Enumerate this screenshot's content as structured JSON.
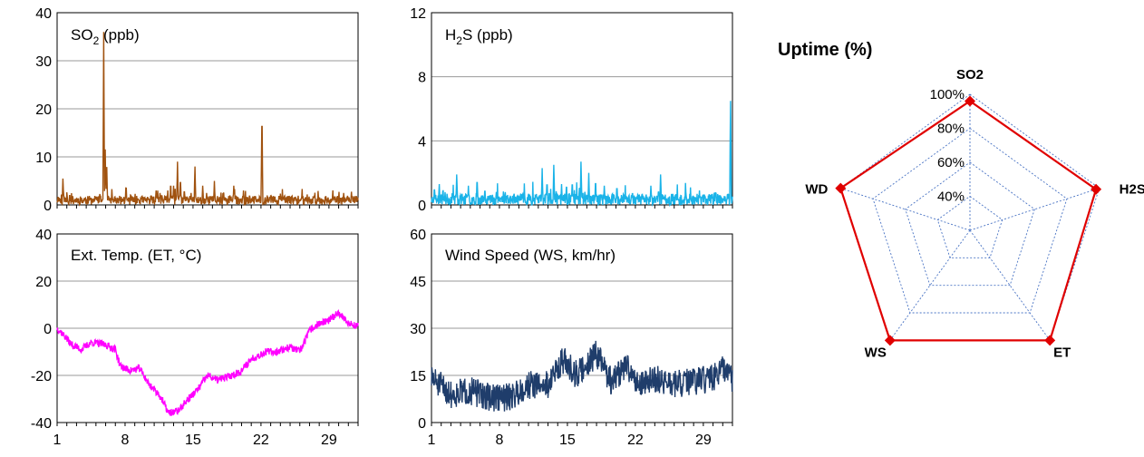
{
  "chart_data": [
    {
      "type": "line",
      "panel": "so2",
      "title_main": "SO",
      "title_sub": "2",
      "title_rest": " (ppb)",
      "color": "#a0520f",
      "ylim": [
        0,
        40
      ],
      "yticks": [
        "0",
        "10",
        "20",
        "30",
        "40"
      ],
      "xlim": [
        1,
        32
      ],
      "xticks": [],
      "baseline": 1,
      "noise": 0.9,
      "seed": 11,
      "grid": true,
      "spikes": [
        [
          1.1,
          2
        ],
        [
          1.6,
          5.5
        ],
        [
          2.3,
          2.5
        ],
        [
          4.9,
          1.8
        ],
        [
          5.8,
          36
        ],
        [
          5.95,
          13
        ],
        [
          6.1,
          10
        ],
        [
          8.1,
          4.5
        ],
        [
          8.6,
          2
        ],
        [
          11.2,
          3
        ],
        [
          11.6,
          2.5
        ],
        [
          12.4,
          3
        ],
        [
          12.7,
          5
        ],
        [
          13.0,
          4
        ],
        [
          13.4,
          9
        ],
        [
          13.7,
          6
        ],
        [
          14.1,
          3.5
        ],
        [
          14.8,
          2.5
        ],
        [
          15.2,
          8
        ],
        [
          16.0,
          4
        ],
        [
          16.4,
          2.5
        ],
        [
          17.2,
          5
        ],
        [
          18.1,
          3
        ],
        [
          18.8,
          2
        ],
        [
          19.2,
          4
        ],
        [
          20.2,
          3
        ],
        [
          22.1,
          21
        ],
        [
          24.4,
          1.8
        ],
        [
          25.5,
          2
        ],
        [
          27.5,
          2
        ],
        [
          28.9,
          1.5
        ]
      ]
    },
    {
      "type": "line",
      "panel": "h2s",
      "title_main": "H",
      "title_sub": "2",
      "title_rest": "S  (ppb)",
      "color": "#1ab3e8",
      "ylim": [
        0,
        12
      ],
      "yticks": [
        "0",
        "4",
        "8",
        "12"
      ],
      "xlim": [
        1,
        32
      ],
      "xticks": [],
      "baseline": 0.35,
      "noise": 0.35,
      "seed": 23,
      "grid": true,
      "spikes": [
        [
          1.3,
          1.2
        ],
        [
          1.8,
          1.3
        ],
        [
          2.4,
          0.8
        ],
        [
          3.6,
          1.9
        ],
        [
          4.8,
          1.2
        ],
        [
          5.7,
          1.8
        ],
        [
          6.5,
          1.1
        ],
        [
          7.7,
          1.0
        ],
        [
          8.6,
          0.8
        ],
        [
          12.4,
          2.3
        ],
        [
          12.9,
          1.6
        ],
        [
          13.6,
          2.5
        ],
        [
          14.4,
          1.3
        ],
        [
          15.5,
          1.6
        ],
        [
          16.4,
          2.7
        ],
        [
          17.2,
          2.0
        ],
        [
          17.9,
          1.7
        ],
        [
          18.8,
          1.2
        ],
        [
          20.1,
          1.3
        ],
        [
          21.7,
          0.9
        ],
        [
          23.6,
          1.2
        ],
        [
          24.6,
          1.9
        ],
        [
          27.2,
          0.8
        ],
        [
          28.6,
          0.9
        ],
        [
          31.8,
          6.5
        ]
      ]
    },
    {
      "type": "line",
      "panel": "et",
      "title_main": "Ext. Temp. (ET, °C)",
      "title_sub": "",
      "title_rest": "",
      "color": "#ff00ff",
      "ylim": [
        -40,
        40
      ],
      "yticks": [
        "-40",
        "-20",
        "0",
        "20",
        "40"
      ],
      "xlim": [
        1,
        32
      ],
      "xticks": [
        "1",
        "8",
        "15",
        "22",
        "29"
      ],
      "noise": 1.6,
      "seed": 37,
      "grid": true,
      "anchors": [
        [
          1,
          0
        ],
        [
          1.5,
          -2
        ],
        [
          2.5,
          -7
        ],
        [
          3.5,
          -9
        ],
        [
          4.5,
          -6
        ],
        [
          6,
          -7
        ],
        [
          7,
          -9
        ],
        [
          7.5,
          -16
        ],
        [
          8.5,
          -18
        ],
        [
          9.5,
          -17
        ],
        [
          10.5,
          -24
        ],
        [
          11.5,
          -28
        ],
        [
          12.5,
          -36
        ],
        [
          13.5,
          -35
        ],
        [
          14.5,
          -30
        ],
        [
          15.5,
          -26
        ],
        [
          16.5,
          -20
        ],
        [
          17.5,
          -22
        ],
        [
          19,
          -20
        ],
        [
          20,
          -18
        ],
        [
          21,
          -13
        ],
        [
          22.5,
          -10
        ],
        [
          23.5,
          -10
        ],
        [
          25,
          -8
        ],
        [
          26,
          -10
        ],
        [
          27,
          -1
        ],
        [
          28,
          2
        ],
        [
          29,
          3
        ],
        [
          30,
          7
        ],
        [
          31,
          2
        ],
        [
          32,
          1
        ]
      ]
    },
    {
      "type": "line",
      "panel": "ws",
      "title_main": "Wind Speed (WS, km/hr)",
      "title_sub": "",
      "title_rest": "",
      "color": "#1f3d6b",
      "ylim": [
        0,
        60
      ],
      "yticks": [
        "0",
        "15",
        "30",
        "45",
        "60"
      ],
      "xlim": [
        1,
        32
      ],
      "xticks": [
        "1",
        "8",
        "15",
        "22",
        "29"
      ],
      "noise": 4.5,
      "seed": 51,
      "grid": true,
      "anchors": [
        [
          1,
          14
        ],
        [
          3,
          9
        ],
        [
          5,
          10
        ],
        [
          7,
          8
        ],
        [
          9,
          8
        ],
        [
          11,
          12
        ],
        [
          13,
          12
        ],
        [
          14.5,
          20
        ],
        [
          16,
          15
        ],
        [
          18,
          22
        ],
        [
          19.5,
          13
        ],
        [
          21,
          18
        ],
        [
          22.5,
          12
        ],
        [
          24,
          14
        ],
        [
          26,
          12
        ],
        [
          28,
          13
        ],
        [
          30,
          14
        ],
        [
          31,
          17
        ],
        [
          32,
          14
        ]
      ]
    },
    {
      "type": "radar",
      "panel": "uptime",
      "title": "Uptime (%)",
      "axes": [
        "SO2",
        "H2S",
        "ET",
        "WS",
        "WD"
      ],
      "values": [
        0.96,
        0.98,
        1.0,
        1.0,
        1.0
      ],
      "rings": [
        0.2,
        0.4,
        0.6,
        0.8,
        1.0
      ],
      "ring_min": 0.2,
      "ring_max": 1.0,
      "ring_labels": [
        "40%",
        "60%",
        "80%",
        "100%"
      ],
      "series_color": "#e00000",
      "grid_color": "#4a74c4"
    }
  ]
}
